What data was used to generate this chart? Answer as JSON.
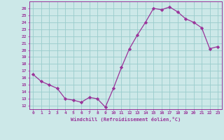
{
  "x": [
    0,
    1,
    2,
    3,
    4,
    5,
    6,
    7,
    8,
    9,
    10,
    11,
    12,
    13,
    14,
    15,
    16,
    17,
    18,
    19,
    20,
    21,
    22,
    23
  ],
  "y": [
    16.5,
    15.5,
    15.0,
    14.5,
    13.0,
    12.8,
    12.5,
    13.2,
    13.0,
    11.8,
    14.5,
    17.5,
    20.2,
    22.2,
    24.0,
    26.0,
    25.8,
    26.2,
    25.5,
    24.5,
    24.0,
    23.2,
    20.2,
    20.5
  ],
  "line_color": "#993399",
  "marker": "D",
  "marker_size": 2.2,
  "bg_color": "#cce8e8",
  "grid_color": "#99cccc",
  "xlabel": "Windchill (Refroidissement éolien,°C)",
  "xlabel_color": "#993399",
  "tick_color": "#993399",
  "ylabel_values": [
    12,
    13,
    14,
    15,
    16,
    17,
    18,
    19,
    20,
    21,
    22,
    23,
    24,
    25,
    26
  ],
  "ylim": [
    11.5,
    27.0
  ],
  "xlim": [
    -0.5,
    23.5
  ]
}
